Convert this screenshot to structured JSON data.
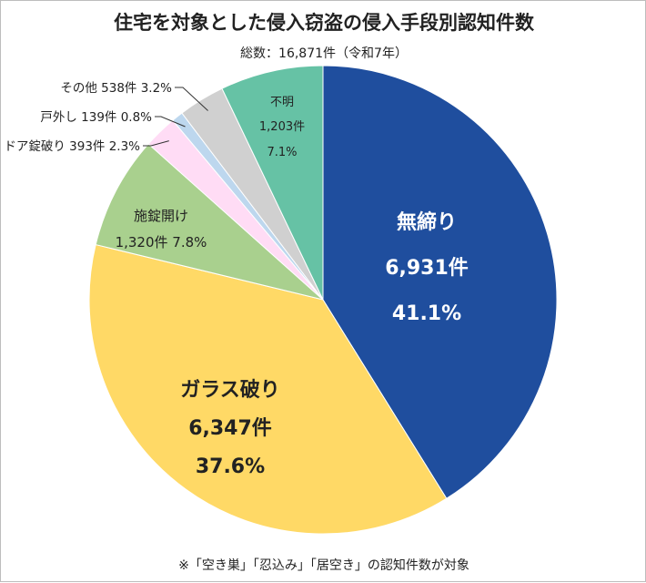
{
  "chart_data": {
    "type": "pie",
    "title": "住宅を対象とした侵入窃盗の侵入手段別認知件数",
    "subtitle": "総数：16,871件（令和7年）",
    "note": "※「空き巣」「忍込み」「居空き」の認知件数が対象",
    "start_angle_deg": 0,
    "direction": "clockwise",
    "slices": [
      {
        "label": "無締り",
        "count": "6,931件",
        "percent_text": "41.1%",
        "value": 41.1,
        "color": "#1f4e9e",
        "text_color": "#ffffff"
      },
      {
        "label": "ガラス破り",
        "count": "6,347件",
        "percent_text": "37.6%",
        "value": 37.6,
        "color": "#ffd966",
        "text_color": "#222222"
      },
      {
        "label": "施錠開け",
        "count": "1,320件",
        "percent_text": "7.8%",
        "value": 7.8,
        "color": "#a9d08e",
        "text_color": "#222222"
      },
      {
        "label": "ドア錠破り",
        "count": "393件",
        "percent_text": "2.3%",
        "value": 2.3,
        "color": "#ffdcf5",
        "text_color": "#222222"
      },
      {
        "label": "戸外し",
        "count": "139件",
        "percent_text": "0.8%",
        "value": 0.8,
        "color": "#bdd7ee",
        "text_color": "#222222"
      },
      {
        "label": "その他",
        "count": "538件",
        "percent_text": "3.2%",
        "value": 3.2,
        "color": "#d0d0d0",
        "text_color": "#222222"
      },
      {
        "label": "不明",
        "count": "1,203件",
        "percent_text": "7.1%",
        "value": 7.1,
        "color": "#66c2a5",
        "text_color": "#222222"
      }
    ]
  }
}
